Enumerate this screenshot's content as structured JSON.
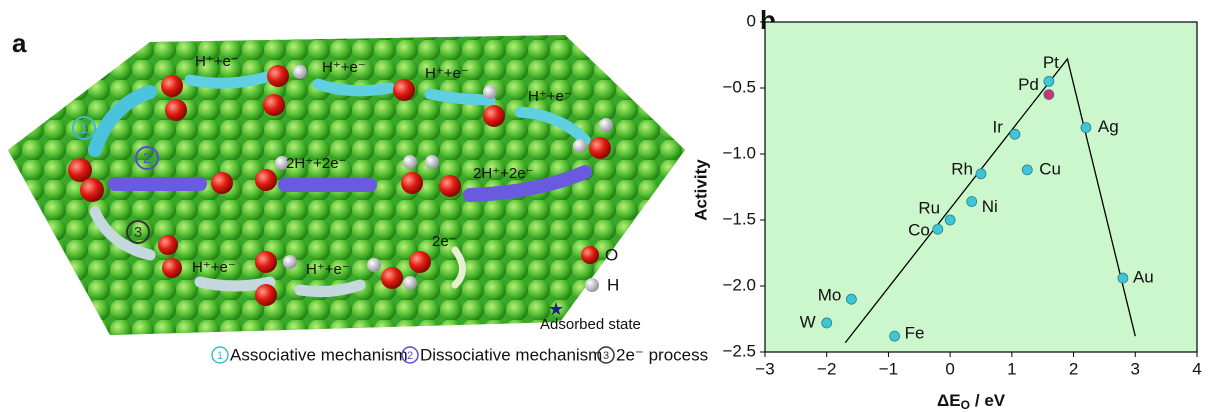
{
  "panel_a": {
    "label": "a",
    "steps": [
      "H⁺+e⁻",
      "H⁺+e⁻",
      "H⁺+e⁻",
      "H⁺+e⁻",
      "2H⁺+2e⁻",
      "2H⁺+2e⁻",
      "H⁺+e⁻",
      "H⁺+e⁻",
      "2e⁻"
    ],
    "mechanisms": [
      {
        "number": "1",
        "name": "Associative mechanism"
      },
      {
        "number": "2",
        "name": "Dissociative mechanism"
      },
      {
        "number": "3",
        "name": "2e⁻ process"
      }
    ],
    "legend": {
      "oxygen": "O",
      "hydrogen": "H",
      "adsorbed": "Adsorbed state"
    }
  },
  "chart_data": {
    "type": "scatter",
    "panel_label": "b",
    "y_label": "Activity",
    "x_label_symbol": "ΔE",
    "x_label_subscript": "O",
    "x_label_unit": "/ eV",
    "labels": [
      "Pt",
      "Pd",
      "Ir",
      "Ag",
      "Cu",
      "Rh",
      "Ni",
      "Ru",
      "Co",
      "Mo",
      "W",
      "Fe",
      "Au"
    ],
    "x": [
      1.6,
      1.6,
      1.05,
      2.2,
      1.25,
      0.5,
      0.35,
      0.0,
      -0.2,
      -1.6,
      -2.0,
      -0.9,
      2.8
    ],
    "values": [
      -0.45,
      -0.55,
      -0.85,
      -0.8,
      -1.12,
      -1.15,
      -1.36,
      -1.5,
      -1.57,
      -2.1,
      -2.28,
      -2.38,
      -1.94
    ],
    "colors": [
      "#3fc6d6",
      "#d2306e",
      "#3fc6d6",
      "#3fc6d6",
      "#3fc6d6",
      "#3fc6d6",
      "#3fc6d6",
      "#3fc6d6",
      "#3fc6d6",
      "#3fc6d6",
      "#3fc6d6",
      "#3fc6d6",
      "#3fc6d6"
    ],
    "trend_line": {
      "x": [
        -1.7,
        1.9,
        3.0
      ],
      "y": [
        -2.43,
        -0.28,
        -2.38
      ]
    },
    "background": "#ccf7cc",
    "xlim": [
      -3,
      4
    ],
    "ylim": [
      -2.5,
      0
    ],
    "xticks": [
      {
        "value": -3,
        "label": "−3"
      },
      {
        "value": -2,
        "label": "−2"
      },
      {
        "value": -1,
        "label": "−1"
      },
      0,
      1,
      2,
      3,
      4
    ],
    "yticks": [
      0,
      {
        "value": -0.5,
        "label": "−0.5"
      },
      {
        "value": -1,
        "label": "−1.0"
      },
      {
        "value": -1.5,
        "label": "−1.5"
      },
      {
        "value": -2,
        "label": "−2.0"
      },
      {
        "value": -2.5,
        "label": "−2.5"
      }
    ]
  }
}
